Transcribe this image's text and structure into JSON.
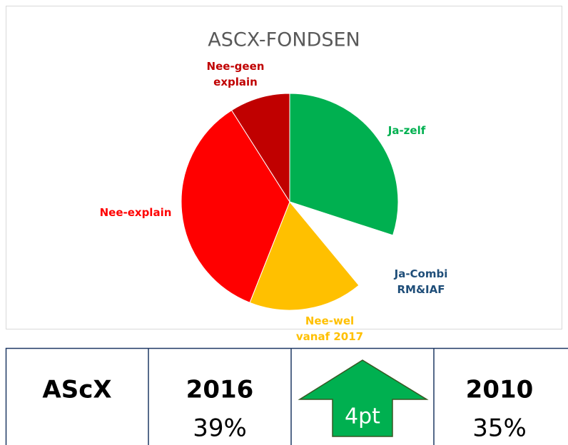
{
  "chart_data": {
    "type": "pie",
    "title": "ASCX-FONDSEN",
    "categories": [
      "Ja-zelf",
      "Ja-Combi RM&IAF",
      "Nee-wel vanaf 2017",
      "Nee-explain",
      "Nee-geen explain"
    ],
    "values": [
      30,
      9,
      17,
      35,
      9
    ],
    "colors": [
      "#00b050",
      "#ffffff",
      "#ffc000",
      "#ff0000",
      "#c00000"
    ],
    "label_colors": [
      "#00b050",
      "#1f4e79",
      "#ffc000",
      "#ff0000",
      "#c00000"
    ]
  },
  "table": {
    "cells": [
      {
        "title": "AScX"
      },
      {
        "title": "2016",
        "value": "39%"
      },
      {
        "arrow": "4pt"
      },
      {
        "title": "2010",
        "value": "35%"
      }
    ]
  }
}
